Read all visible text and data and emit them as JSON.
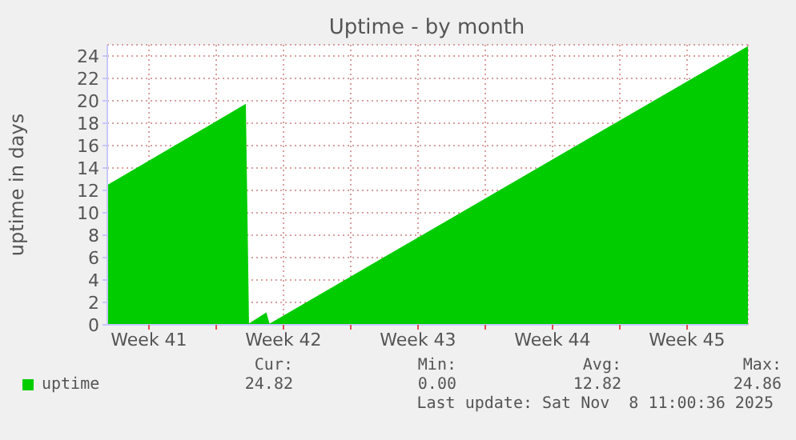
{
  "chart_data": {
    "type": "area",
    "title": "Uptime - by month",
    "ylabel": "uptime in days",
    "x": [
      "2025-10-06T03:00",
      "2025-10-13T07:00",
      "2025-10-13T11:00",
      "2025-10-14T09:00",
      "2025-10-14T13:00",
      "2025-11-08T11:00"
    ],
    "series": [
      {
        "name": "uptime",
        "color": "#00cc00",
        "values": [
          12.4,
          19.6,
          0,
          1.0,
          0,
          24.8
        ]
      }
    ],
    "xlim": [
      "2025-10-06T03:00",
      "2025-11-08T11:00"
    ],
    "xticks": [
      {
        "value": "2025-10-08T07:00",
        "label": "Week 41"
      },
      {
        "value": "2025-10-11T19:00",
        "label": null
      },
      {
        "value": "2025-10-15T07:00",
        "label": "Week 42"
      },
      {
        "value": "2025-10-18T19:00",
        "label": null
      },
      {
        "value": "2025-10-22T07:00",
        "label": "Week 43"
      },
      {
        "value": "2025-10-25T19:00",
        "label": null
      },
      {
        "value": "2025-10-29T07:00",
        "label": "Week 44"
      },
      {
        "value": "2025-11-01T19:00",
        "label": null
      },
      {
        "value": "2025-11-05T07:00",
        "label": "Week 45"
      }
    ],
    "ylim": [
      0,
      25
    ],
    "yticks": [
      0,
      2,
      4,
      6,
      8,
      10,
      12,
      14,
      16,
      18,
      20,
      22,
      24
    ],
    "grid": true,
    "legend": "bottom left",
    "annotations": [
      "Cur:",
      "Min:",
      "Avg:",
      "Max:",
      "24.82",
      "0.00",
      "12.82",
      "24.86",
      "Last update: Sat Nov  8 11:00:36 2025"
    ]
  }
}
